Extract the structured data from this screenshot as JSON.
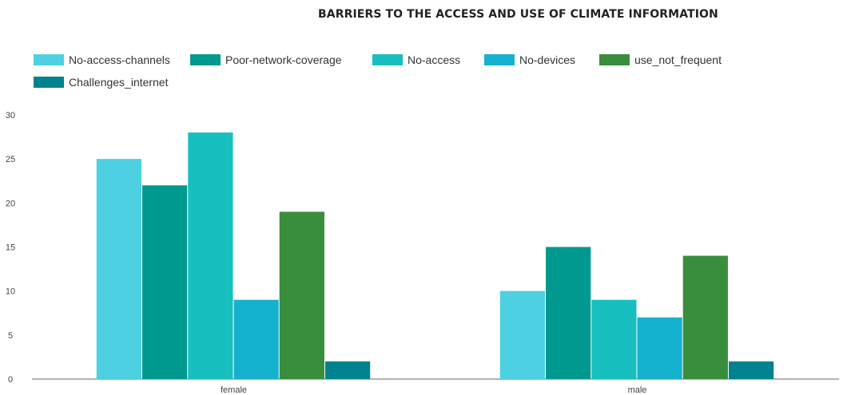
{
  "chart_data": {
    "type": "bar",
    "title": "BARRIERS TO THE ACCESS AND USE OF CLIMATE INFORMATION",
    "xlabel": "",
    "ylabel": "",
    "categories": [
      "female",
      "male"
    ],
    "ylim": [
      0,
      30
    ],
    "yticks": [
      0,
      5,
      10,
      15,
      20,
      25,
      30
    ],
    "grid": false,
    "legend_position": "top",
    "series": [
      {
        "name": "No-access-channels",
        "color": "#4dd0e1",
        "values": [
          25,
          10
        ]
      },
      {
        "name": "Poor-network-coverage",
        "color": "#00998f",
        "values": [
          22,
          15
        ]
      },
      {
        "name": "No-access",
        "color": "#18bfbf",
        "values": [
          28,
          9
        ]
      },
      {
        "name": "No-devices",
        "color": "#15b2d0",
        "values": [
          9,
          7
        ]
      },
      {
        "name": "use_not_frequent",
        "color": "#388e3c",
        "values": [
          19,
          14
        ]
      },
      {
        "name": "Challenges_internet",
        "color": "#00838f",
        "values": [
          2,
          2
        ]
      }
    ]
  }
}
